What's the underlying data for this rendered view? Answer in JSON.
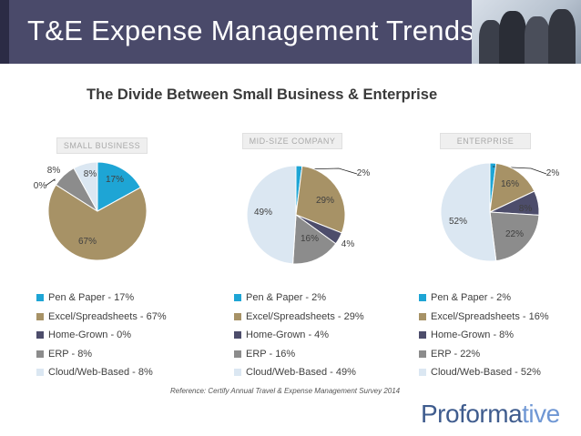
{
  "header": {
    "title": "T&E Expense Management Trends"
  },
  "subtitle": "The Divide Between Small Business & Enterprise",
  "colors": [
    "#1ea5d5",
    "#a79266",
    "#4d4d6b",
    "#8c8c8c",
    "#dbe7f2"
  ],
  "chart_data": [
    {
      "type": "pie",
      "title": "SMALL BUSINESS",
      "categories": [
        "Pen & Paper",
        "Excel/Spreadsheets",
        "Home-Grown",
        "ERP",
        "Cloud/Web-Based"
      ],
      "values": [
        17,
        67,
        0,
        8,
        8
      ],
      "data_labels": [
        "17%",
        "67%",
        "0%",
        "8%",
        "8%"
      ],
      "legend": [
        "Pen & Paper - 17%",
        "Excel/Spreadsheets - 67%",
        "Home-Grown - 0%",
        "ERP - 8%",
        "Cloud/Web-Based - 8%"
      ]
    },
    {
      "type": "pie",
      "title": "MID-SIZE COMPANY",
      "categories": [
        "Pen & Paper",
        "Excel/Spreadsheets",
        "Home-Grown",
        "ERP",
        "Cloud/Web-Based"
      ],
      "values": [
        2,
        29,
        4,
        16,
        49
      ],
      "data_labels": [
        "2%",
        "29%",
        "4%",
        "16%",
        "49%"
      ],
      "legend": [
        "Pen & Paper - 2%",
        "Excel/Spreadsheets - 29%",
        "Home-Grown - 4%",
        "ERP - 16%",
        "Cloud/Web-Based - 49%"
      ]
    },
    {
      "type": "pie",
      "title": "ENTERPRISE",
      "categories": [
        "Pen & Paper",
        "Excel/Spreadsheets",
        "Home-Grown",
        "ERP",
        "Cloud/Web-Based"
      ],
      "values": [
        2,
        16,
        8,
        22,
        52
      ],
      "data_labels": [
        "2%",
        "16%",
        "8%",
        "22%",
        "52%"
      ],
      "legend": [
        "Pen & Paper - 2%",
        "Excel/Spreadsheets - 16%",
        "Home-Grown - 8%",
        "ERP - 22%",
        "Cloud/Web-Based - 52%"
      ]
    }
  ],
  "reference": "Reference: Certify Annual Travel & Expense Management Survey 2014",
  "logo": {
    "main": "Proforma",
    "accent": "tive"
  }
}
